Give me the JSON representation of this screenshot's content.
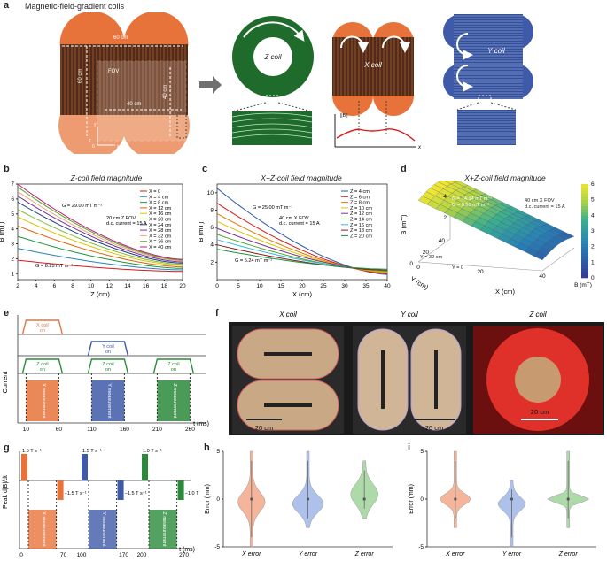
{
  "panels": {
    "a": {
      "letter": "a",
      "title": "Magnetic-field-gradient coils",
      "dims": {
        "w60": "60 cm",
        "h60": "60 cm",
        "fov": "FOV",
        "w40": "40 cm",
        "h40": "40 cm"
      },
      "axes": {
        "origin": "0",
        "x": "x",
        "y": "y",
        "z": "z"
      },
      "coil_labels": {
        "z": "Z coil",
        "x": "X coil",
        "y": "Y coil"
      },
      "profile": {
        "ylabel": "||B||",
        "xlabel": "x"
      },
      "colors": {
        "orange": "#e8733a",
        "wood": "#6b3b22",
        "green": "#1f6b2c",
        "blue": "#3e5aa8",
        "arrow": "#707070"
      }
    },
    "b": {
      "letter": "b",
      "title": "Z-coil field magnitude"
    },
    "c": {
      "letter": "c",
      "title": "X+Z-coil field magnitude"
    },
    "d": {
      "letter": "d",
      "title": "X+Z-coil field magnitude"
    },
    "e": {
      "letter": "e"
    },
    "f": {
      "letter": "f",
      "photo_titles": [
        "X coil",
        "Y coil",
        "Z coil"
      ],
      "scale": "20 cm"
    },
    "g": {
      "letter": "g"
    },
    "h": {
      "letter": "h"
    },
    "i": {
      "letter": "i"
    }
  },
  "chart_data": [
    {
      "id": "b",
      "type": "line",
      "title": "Z-coil field magnitude",
      "xlabel": "Z (cm)",
      "ylabel": "B (mT)",
      "xlim": [
        2,
        20
      ],
      "ylim": [
        0.6,
        7
      ],
      "xticks": [
        2,
        4,
        6,
        8,
        10,
        12,
        14,
        16,
        18,
        20
      ],
      "yticks": [
        1,
        2,
        3,
        4,
        5,
        6,
        7
      ],
      "annotations": [
        "G = 29.00 mT m⁻¹",
        "20 cm Z FOV",
        "d.c. current = 15 A",
        "G = 8.25 mT m⁻¹"
      ],
      "series": [
        {
          "name": "X = 0",
          "color": "#d7191c",
          "start": 1.9,
          "end": 1.15
        },
        {
          "name": "X = 4 cm",
          "color": "#2b83ba",
          "start": 2.7,
          "end": 1.25
        },
        {
          "name": "X = 8 cm",
          "color": "#1a9641",
          "start": 3.5,
          "end": 1.35
        },
        {
          "name": "X = 12 cm",
          "color": "#e66101",
          "start": 4.2,
          "end": 1.45
        },
        {
          "name": "X = 16 cm",
          "color": "#d9c400",
          "start": 4.8,
          "end": 1.55
        },
        {
          "name": "X = 20 cm",
          "color": "#7fbf3f",
          "start": 5.3,
          "end": 1.62
        },
        {
          "name": "X = 24 cm",
          "color": "#1f3c88",
          "start": 5.8,
          "end": 1.7
        },
        {
          "name": "X = 28 cm",
          "color": "#7b3294",
          "start": 6.2,
          "end": 1.78
        },
        {
          "name": "X = 32 cm",
          "color": "#f4a582",
          "start": 6.5,
          "end": 1.85
        },
        {
          "name": "X = 36 cm",
          "color": "#4dac26",
          "start": 6.8,
          "end": 1.9
        },
        {
          "name": "X = 40 cm",
          "color": "#c51b7d",
          "start": 7.0,
          "end": 1.95
        }
      ]
    },
    {
      "id": "c",
      "type": "line",
      "title": "X+Z-coil field magnitude",
      "xlabel": "X (cm)",
      "ylabel": "B (mT)",
      "xlim": [
        0,
        40
      ],
      "ylim": [
        0,
        11
      ],
      "xticks": [
        0,
        5,
        10,
        15,
        20,
        25,
        30,
        35,
        40
      ],
      "yticks": [
        2,
        4,
        6,
        8,
        10
      ],
      "annotations": [
        "G = 25.00 mT m⁻¹",
        "40 cm X FOV",
        "d.c. current = 15 A",
        "G = 5.24 mT m⁻¹"
      ],
      "series": [
        {
          "name": "Z = 4 cm",
          "color": "#2b5aa8",
          "start": 10.5,
          "end": 0.6
        },
        {
          "name": "Z = 6 cm",
          "color": "#d7191c",
          "start": 8.8,
          "end": 0.7
        },
        {
          "name": "Z = 8 cm",
          "color": "#e07b00",
          "start": 7.6,
          "end": 0.8
        },
        {
          "name": "Z = 10 cm",
          "color": "#d9c400",
          "start": 6.7,
          "end": 0.9
        },
        {
          "name": "Z = 12 cm",
          "color": "#7b3294",
          "start": 5.9,
          "end": 1.0
        },
        {
          "name": "Z = 14 cm",
          "color": "#4dac26",
          "start": 5.2,
          "end": 1.0
        },
        {
          "name": "Z = 16 cm",
          "color": "#33b5e5",
          "start": 4.6,
          "end": 1.1
        },
        {
          "name": "Z = 18 cm",
          "color": "#8b1a1a",
          "start": 4.0,
          "end": 1.1
        },
        {
          "name": "Z = 20 cm",
          "color": "#1a9641",
          "start": 3.5,
          "end": 1.2
        }
      ]
    },
    {
      "id": "d",
      "type": "surface",
      "title": "X+Z-coil field magnitude",
      "xlabel": "X (cm)",
      "ylabel": "Y (cm)",
      "zlabel": "B (mT)",
      "xticks": [
        0,
        20,
        40
      ],
      "yticks": [
        0,
        20,
        40
      ],
      "zticks": [
        2,
        4,
        6
      ],
      "colorbar": {
        "label": "B (mT)",
        "min": 0,
        "max": 6,
        "ticks": [
          0,
          1,
          2,
          3,
          4,
          5,
          6
        ]
      },
      "annotations": [
        "G = 14.14 mT m⁻¹",
        "G = 5.65 mT m⁻¹",
        "40 cm X FOV",
        "d.c. current = 15 A",
        "Y = 32 cm",
        "Y = 0"
      ]
    },
    {
      "id": "e",
      "type": "timing",
      "xlabel": "t (ms)",
      "ylabel": "Current",
      "pulses": [
        {
          "label": "X coil on",
          "color": "#e8733a",
          "start": 10,
          "end": 60
        },
        {
          "label": "Y coil on",
          "color": "#3e5aa8",
          "start": 110,
          "end": 160
        },
        {
          "label": "Z coil on",
          "color": "#2a8a3a",
          "start": 10,
          "end": 60
        },
        {
          "label": "Z coil on",
          "color": "#2a8a3a",
          "start": 110,
          "end": 160
        },
        {
          "label": "Z coil on",
          "color": "#2a8a3a",
          "start": 210,
          "end": 260
        }
      ],
      "windows": [
        {
          "label": "X measurement",
          "color": "#e8733a"
        },
        {
          "label": "Y measurement",
          "color": "#3e5aa8"
        },
        {
          "label": "Z measurement",
          "color": "#2a8a3a"
        }
      ],
      "ticks": [
        "10",
        "60",
        "110",
        "160",
        "210",
        "260"
      ]
    },
    {
      "id": "g",
      "type": "timing",
      "xlabel": "t (ms)",
      "ylabel": "Peak d|B|/dt",
      "rates": [
        "1.5 T s⁻¹",
        "−1.5 T s⁻¹",
        "1.5 T s⁻¹",
        "−1.5 T s⁻¹",
        "1.0 T s⁻¹",
        "−1.0 T s⁻¹"
      ],
      "windows": [
        {
          "label": "X measurement",
          "color": "#e8733a"
        },
        {
          "label": "Y measurement",
          "color": "#3e5aa8"
        },
        {
          "label": "Z measurement",
          "color": "#2a8a3a"
        }
      ],
      "ticks": [
        "0",
        "70",
        "100",
        "170",
        "200",
        "270"
      ]
    },
    {
      "id": "h",
      "type": "violin",
      "ylabel": "Error (mm)",
      "ylim": [
        -5,
        5
      ],
      "yticks": [
        -5,
        0,
        5
      ],
      "categories": [
        "X error",
        "Y error",
        "Z error"
      ],
      "colors": [
        "#f3a98a",
        "#9fb7e8",
        "#9fd49a"
      ]
    },
    {
      "id": "i",
      "type": "violin",
      "ylabel": "Error (mm)",
      "ylim": [
        -5,
        5
      ],
      "yticks": [
        -5,
        0,
        5
      ],
      "categories": [
        "X error",
        "Y error",
        "Z error"
      ],
      "colors": [
        "#f3a98a",
        "#9fb7e8",
        "#9fd49a"
      ]
    }
  ]
}
